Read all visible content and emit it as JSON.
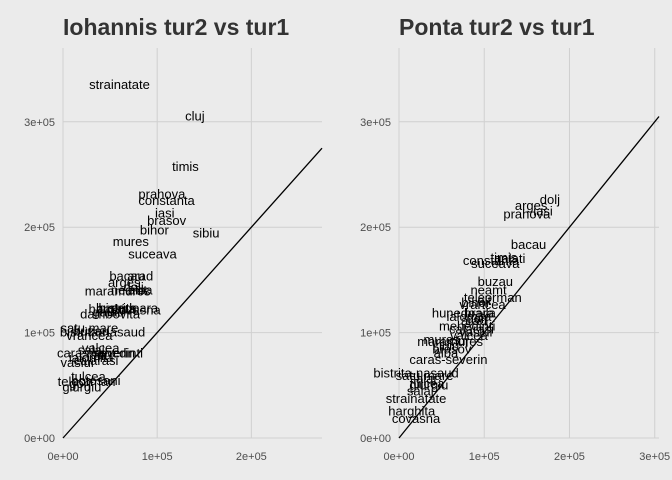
{
  "chart_data": [
    {
      "type": "scatter",
      "title": "Iohannis tur2 vs tur1",
      "xlim": [
        0,
        275000
      ],
      "ylim": [
        0,
        370000
      ],
      "x_ticks": [
        0,
        100000,
        200000
      ],
      "x_tick_labels": [
        "0e+00",
        "1e+05",
        "2e+05"
      ],
      "y_ticks": [
        0,
        100000,
        200000,
        300000
      ],
      "y_tick_labels": [
        "0e+00",
        "1e+05",
        "2e+05",
        "3e+05"
      ],
      "grid": true,
      "reference_line": "y = x",
      "points": [
        {
          "label": "strainatate",
          "x": 60000,
          "y": 335000
        },
        {
          "label": "cluj",
          "x": 140000,
          "y": 305000
        },
        {
          "label": "timis",
          "x": 130000,
          "y": 257000
        },
        {
          "label": "prahova",
          "x": 105000,
          "y": 231000
        },
        {
          "label": "constanta",
          "x": 110000,
          "y": 225000
        },
        {
          "label": "iasi",
          "x": 108000,
          "y": 213000
        },
        {
          "label": "brasov",
          "x": 110000,
          "y": 206000
        },
        {
          "label": "bihor",
          "x": 97000,
          "y": 197000
        },
        {
          "label": "sibiu",
          "x": 152000,
          "y": 194000
        },
        {
          "label": "mures",
          "x": 72000,
          "y": 186000
        },
        {
          "label": "suceava",
          "x": 95000,
          "y": 174000
        },
        {
          "label": "bacau",
          "x": 68000,
          "y": 153000
        },
        {
          "label": "arad",
          "x": 82000,
          "y": 153000
        },
        {
          "label": "arges",
          "x": 65000,
          "y": 147000
        },
        {
          "label": "dolj",
          "x": 75000,
          "y": 143000
        },
        {
          "label": "neamt",
          "x": 70000,
          "y": 140000
        },
        {
          "label": "maramures",
          "x": 58000,
          "y": 139000
        },
        {
          "label": "alba",
          "x": 82000,
          "y": 140000
        },
        {
          "label": "harghita",
          "x": 52000,
          "y": 122000
        },
        {
          "label": "bistrita",
          "x": 58000,
          "y": 123000
        },
        {
          "label": "hunedoara",
          "x": 68000,
          "y": 123000
        },
        {
          "label": "galati",
          "x": 48000,
          "y": 119000
        },
        {
          "label": "covasna",
          "x": 78000,
          "y": 121000
        },
        {
          "label": "dambovita",
          "x": 50000,
          "y": 117000
        },
        {
          "label": "satu mare",
          "x": 28000,
          "y": 104000
        },
        {
          "label": "buzau",
          "x": 30000,
          "y": 101000
        },
        {
          "label": "bistrita-nasaud",
          "x": 42000,
          "y": 100000
        },
        {
          "label": "vrancea",
          "x": 28000,
          "y": 97000
        },
        {
          "label": "valcea",
          "x": 40000,
          "y": 85000
        },
        {
          "label": "salaj",
          "x": 30000,
          "y": 83000
        },
        {
          "label": "caras-severin",
          "x": 35000,
          "y": 80000
        },
        {
          "label": "mehedinti",
          "x": 55000,
          "y": 80000
        },
        {
          "label": "olt",
          "x": 40000,
          "y": 78000
        },
        {
          "label": "calarasi",
          "x": 35000,
          "y": 73000
        },
        {
          "label": "ialomita",
          "x": 30000,
          "y": 76000
        },
        {
          "label": "vaslui",
          "x": 15000,
          "y": 71000
        },
        {
          "label": "tulcea",
          "x": 27000,
          "y": 58000
        },
        {
          "label": "botosani",
          "x": 35000,
          "y": 54000
        },
        {
          "label": "teleorman",
          "x": 25000,
          "y": 53000
        },
        {
          "label": "gorj",
          "x": 18000,
          "y": 51000
        },
        {
          "label": "giurgiu",
          "x": 20000,
          "y": 48000
        }
      ]
    },
    {
      "type": "scatter",
      "title": "Ponta tur2 vs tur1",
      "xlim": [
        0,
        305000
      ],
      "ylim": [
        0,
        370000
      ],
      "x_ticks": [
        0,
        100000,
        200000,
        300000
      ],
      "x_tick_labels": [
        "0e+00",
        "1e+05",
        "2e+05",
        "3e+05"
      ],
      "y_ticks": [
        0,
        100000,
        200000,
        300000
      ],
      "y_tick_labels": [
        "0e+00",
        "1e+05",
        "2e+05",
        "3e+05"
      ],
      "grid": true,
      "reference_line": "y = x",
      "points": [
        {
          "label": "dolj",
          "x": 177000,
          "y": 226000
        },
        {
          "label": "iasi",
          "x": 169000,
          "y": 215000
        },
        {
          "label": "arges",
          "x": 155000,
          "y": 220000
        },
        {
          "label": "prahova",
          "x": 150000,
          "y": 212000
        },
        {
          "label": "bacau",
          "x": 152000,
          "y": 183000
        },
        {
          "label": "constanta",
          "x": 108000,
          "y": 168000
        },
        {
          "label": "timis",
          "x": 123000,
          "y": 171000
        },
        {
          "label": "galati",
          "x": 130000,
          "y": 170000
        },
        {
          "label": "suceava",
          "x": 113000,
          "y": 165000
        },
        {
          "label": "buzau",
          "x": 113000,
          "y": 148000
        },
        {
          "label": "neamt",
          "x": 105000,
          "y": 140000
        },
        {
          "label": "teleorman",
          "x": 110000,
          "y": 133000
        },
        {
          "label": "olt",
          "x": 100000,
          "y": 130000
        },
        {
          "label": "bihor",
          "x": 90000,
          "y": 128000
        },
        {
          "label": "vrancea",
          "x": 98000,
          "y": 126000
        },
        {
          "label": "hunedoara",
          "x": 75000,
          "y": 118000
        },
        {
          "label": "braila",
          "x": 95000,
          "y": 118000
        },
        {
          "label": "ialomita",
          "x": 82000,
          "y": 115000
        },
        {
          "label": "gorj",
          "x": 92000,
          "y": 113000
        },
        {
          "label": "arad",
          "x": 88000,
          "y": 111000
        },
        {
          "label": "mehedinti",
          "x": 80000,
          "y": 106000
        },
        {
          "label": "calarasi",
          "x": 85000,
          "y": 103000
        },
        {
          "label": "valcea",
          "x": 82000,
          "y": 97000
        },
        {
          "label": "vaslui",
          "x": 90000,
          "y": 100000
        },
        {
          "label": "mures",
          "x": 50000,
          "y": 93000
        },
        {
          "label": "maramures",
          "x": 60000,
          "y": 91000
        },
        {
          "label": "sibiu",
          "x": 55000,
          "y": 87000
        },
        {
          "label": "cluj",
          "x": 70000,
          "y": 92000
        },
        {
          "label": "brasov",
          "x": 62000,
          "y": 84000
        },
        {
          "label": "alba",
          "x": 55000,
          "y": 80000
        },
        {
          "label": "caras-severin",
          "x": 58000,
          "y": 74000
        },
        {
          "label": "bistrita-nasaud",
          "x": 20000,
          "y": 61000
        },
        {
          "label": "satu mare",
          "x": 30000,
          "y": 59000
        },
        {
          "label": "salaj",
          "x": 28000,
          "y": 56000
        },
        {
          "label": "tulcea",
          "x": 33000,
          "y": 51000
        },
        {
          "label": "giurgiu",
          "x": 35000,
          "y": 50000
        },
        {
          "label": "salaj",
          "x": 25000,
          "y": 44000
        },
        {
          "label": "strainatate",
          "x": 20000,
          "y": 37000
        },
        {
          "label": "harghita",
          "x": 15000,
          "y": 25000
        },
        {
          "label": "covasna",
          "x": 20000,
          "y": 18000
        }
      ]
    }
  ]
}
